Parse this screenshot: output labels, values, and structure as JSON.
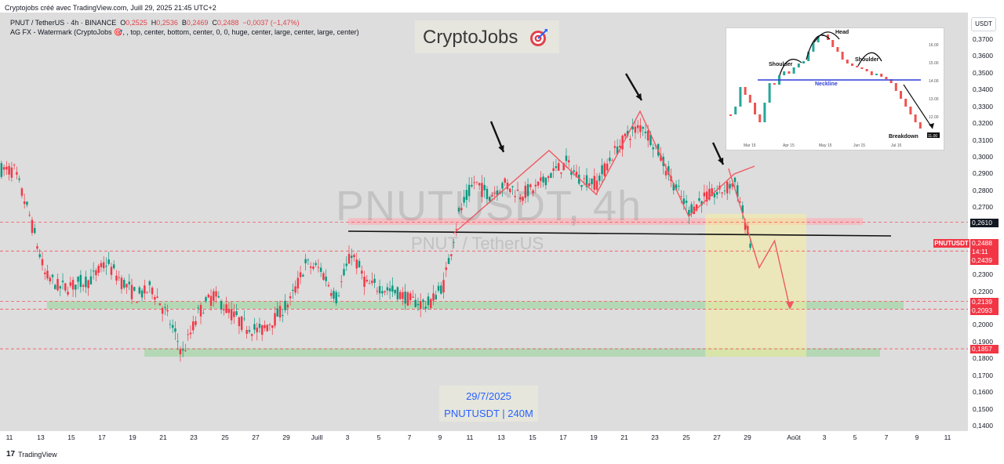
{
  "header": {
    "credit": "Cryptojobs créé avec TradingView.com, Juill 29, 2025 21:45 UTC+2",
    "symbol_line_label": "PNUT / TetherUS · 4h · BINANCE",
    "ohlc": {
      "o_label": "O",
      "o": "0,2525",
      "h_label": "H",
      "h": "0,2536",
      "b_label": "B",
      "b": "0,2469",
      "c_label": "C",
      "c": "0,2488",
      "change": "−0,0037 (−1,47%)"
    },
    "indicator_line": "AG FX - Watermark (CryptoJobs 🎯, , top, center, bottom, center, 0, 0, huge, center, large, center, large, center)"
  },
  "watermark": {
    "ticker": "PNUTUSDT, 4h",
    "pair": "PNUT / TetherUS"
  },
  "brand": {
    "name": "CryptoJobs",
    "icon": "target-dart-icon"
  },
  "datebox": {
    "date": "29/7/2025",
    "subtitle": "PNUTUSDT | 240M"
  },
  "axis": {
    "currency_button": "USDT",
    "y_ticks": [
      "0,3700",
      "0,3600",
      "0,3500",
      "0,3400",
      "0,3300",
      "0,3200",
      "0,3100",
      "0,3000",
      "0,2900",
      "0,2800",
      "0,2700",
      "0,2300",
      "0,2200",
      "0,2000",
      "0,1900",
      "0,1800",
      "0,1700",
      "0,1600",
      "0,1500",
      "0,1400"
    ],
    "x_ticks": [
      "11",
      "13",
      "15",
      "17",
      "19",
      "21",
      "23",
      "25",
      "27",
      "29",
      "Juill",
      "3",
      "5",
      "7",
      "9",
      "11",
      "13",
      "15",
      "17",
      "19",
      "21",
      "23",
      "25",
      "27",
      "29",
      "Août",
      "3",
      "5",
      "7",
      "9",
      "11"
    ],
    "symbol_tag": "PNUTUSDT",
    "price_labels": [
      {
        "value": "0,2610",
        "color": "#131722"
      },
      {
        "value": "0,2488",
        "color": "#f23645"
      },
      {
        "value": "14:11",
        "color": "#f23645"
      },
      {
        "value": "0,2439",
        "color": "#f23645"
      },
      {
        "value": "0,2139",
        "color": "#f23645"
      },
      {
        "value": "0,2093",
        "color": "#f23645"
      },
      {
        "value": "0,1857",
        "color": "#f23645"
      }
    ]
  },
  "inset": {
    "labels": {
      "head": "Head",
      "shoulder_left": "Shoulder",
      "shoulder_right": "Shoulder",
      "neckline": "Neckline",
      "breakdown": "Breakdown"
    },
    "y_ticks": [
      "16.00",
      "15.00",
      "14.00",
      "13.00",
      "12.00"
    ],
    "x_ticks": [
      "Mar 15",
      "Apr 15",
      "May 15",
      "Jun 15",
      "Jul 15"
    ],
    "last_price": "11.00"
  },
  "footer": {
    "logo_text": "TradingView",
    "logo_icon": "tradingview-logo-icon"
  },
  "colors": {
    "up": "#089981",
    "down": "#f23645",
    "bg": "#dddddd",
    "zone_green": "#a5d6a7",
    "zone_red": "#f8b3b8",
    "zone_yellow": "#f5ee9c",
    "accent": "#2962ff"
  },
  "chart_data": {
    "type": "candlestick",
    "title": "PNUT / TetherUS · 4h · BINANCE",
    "timeframe": "4h",
    "x": [
      "Jun 11",
      "Jun 12",
      "Jun 13",
      "Jun 14",
      "Jun 15",
      "Jun 16",
      "Jun 17",
      "Jun 18",
      "Jun 19",
      "Jun 20",
      "Jun 21",
      "Jun 22",
      "Jun 23",
      "Jun 24",
      "Jun 25",
      "Jun 26",
      "Jun 27",
      "Jun 28",
      "Jun 29",
      "Jun 30",
      "Jul 1",
      "Jul 2",
      "Jul 3",
      "Jul 4",
      "Jul 5",
      "Jul 6",
      "Jul 7",
      "Jul 8",
      "Jul 9",
      "Jul 10",
      "Jul 11",
      "Jul 12",
      "Jul 13",
      "Jul 14",
      "Jul 15",
      "Jul 16",
      "Jul 17",
      "Jul 18",
      "Jul 19",
      "Jul 20",
      "Jul 21",
      "Jul 22",
      "Jul 23",
      "Jul 24",
      "Jul 25",
      "Jul 26",
      "Jul 27",
      "Jul 28",
      "Jul 29"
    ],
    "close": [
      0.292,
      0.265,
      0.23,
      0.222,
      0.224,
      0.227,
      0.237,
      0.226,
      0.217,
      0.222,
      0.205,
      0.183,
      0.207,
      0.218,
      0.208,
      0.2,
      0.196,
      0.204,
      0.214,
      0.236,
      0.233,
      0.216,
      0.243,
      0.224,
      0.222,
      0.219,
      0.214,
      0.212,
      0.224,
      0.266,
      0.285,
      0.277,
      0.284,
      0.278,
      0.281,
      0.29,
      0.296,
      0.286,
      0.285,
      0.301,
      0.313,
      0.319,
      0.303,
      0.284,
      0.268,
      0.276,
      0.279,
      0.285,
      0.249
    ],
    "reference_lines": [
      0.261,
      0.2439,
      0.2139,
      0.2093,
      0.1857
    ],
    "zones": [
      {
        "kind": "resistance",
        "low": 0.2595,
        "high": 0.2635
      },
      {
        "kind": "support",
        "low": 0.2095,
        "high": 0.214
      },
      {
        "kind": "support",
        "low": 0.181,
        "high": 0.186
      },
      {
        "kind": "projection",
        "low": 0.181,
        "high": 0.266
      }
    ],
    "projection_path": [
      {
        "date": "Jul 28",
        "price": 0.293
      },
      {
        "date": "Jul 30",
        "price": 0.234
      },
      {
        "date": "Jul 31",
        "price": 0.25
      },
      {
        "date": "Aug 1",
        "price": 0.21
      }
    ],
    "last_price": 0.2488,
    "ylim": [
      0.135,
      0.38
    ]
  }
}
